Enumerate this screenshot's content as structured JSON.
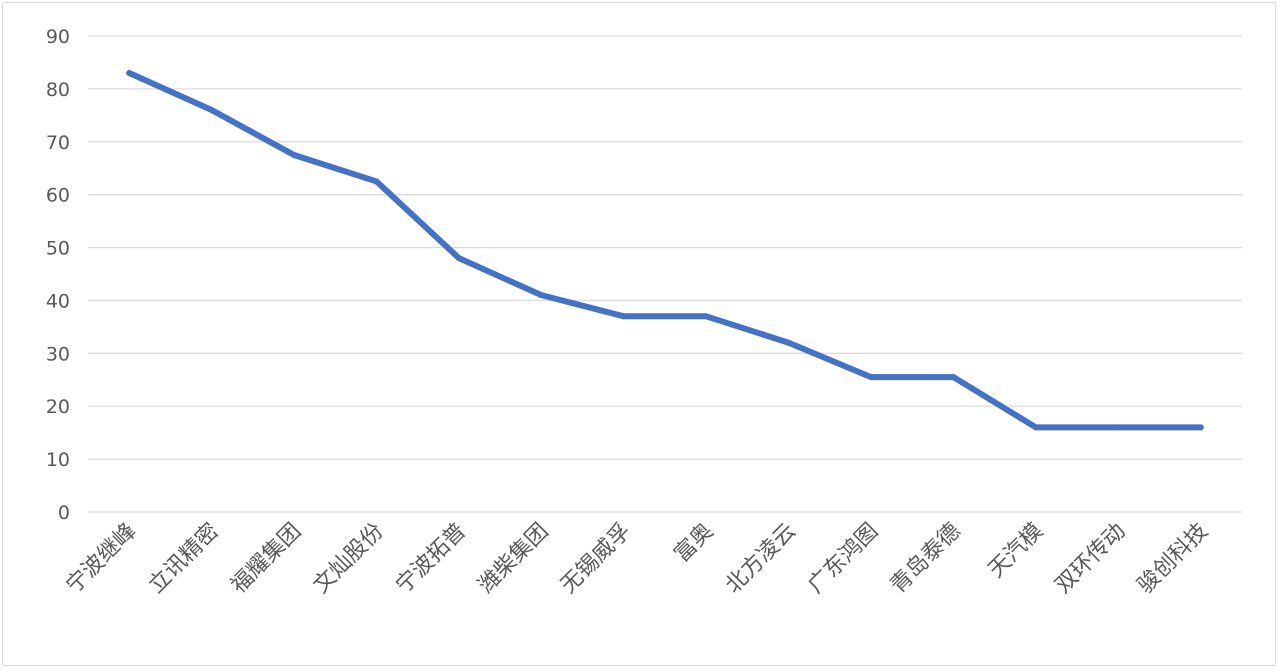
{
  "chart_data": {
    "type": "line",
    "title": "",
    "xlabel": "",
    "ylabel": "",
    "ylim": [
      0,
      90
    ],
    "yticks": [
      0,
      10,
      20,
      30,
      40,
      50,
      60,
      70,
      80,
      90
    ],
    "grid": true,
    "legend": "none",
    "categories": [
      "宁波继峰",
      "立讯精密",
      "福耀集团",
      "文灿股份",
      "宁波拓普",
      "潍柴集团",
      "无锡威孚",
      "富奥",
      "北方凌云",
      "广东鸿图",
      "青岛泰德",
      "天汽模",
      "双环传动",
      "骏创科技"
    ],
    "series": [
      {
        "color": "#4472c4",
        "values": [
          83,
          76,
          67.5,
          62.5,
          48,
          41,
          37,
          37,
          32,
          25.5,
          25.5,
          16,
          16,
          16
        ]
      }
    ]
  }
}
